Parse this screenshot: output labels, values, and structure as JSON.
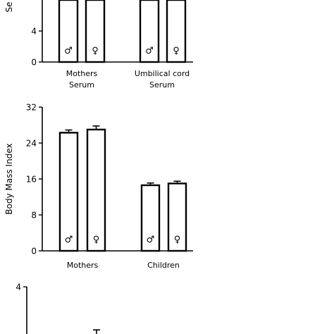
{
  "chart_data": [
    {
      "type": "bar",
      "ylabel": "Se",
      "ylim": [
        0,
        10
      ],
      "yticks": [
        0,
        4
      ],
      "groups": [
        {
          "label": [
            "Mothers",
            "Serum"
          ],
          "bars": [
            {
              "sex": "male",
              "symbol": "♂",
              "value": 10
            },
            {
              "sex": "female",
              "symbol": "♀",
              "value": 10
            }
          ]
        },
        {
          "label": [
            "Umbilical cord",
            "Serum"
          ],
          "bars": [
            {
              "sex": "male",
              "symbol": "♂",
              "value": 8.3
            },
            {
              "sex": "female",
              "symbol": "♀",
              "value": 10
            }
          ]
        }
      ]
    },
    {
      "type": "bar",
      "ylabel": "Body Mass Index",
      "ylim": [
        0,
        32
      ],
      "yticks": [
        0,
        8,
        16,
        24,
        32
      ],
      "groups": [
        {
          "label": [
            "Mothers"
          ],
          "bars": [
            {
              "sex": "male",
              "symbol": "♂",
              "value": 26.3,
              "error": 0.6
            },
            {
              "sex": "female",
              "symbol": "♀",
              "value": 27.0,
              "error": 0.8
            }
          ]
        },
        {
          "label": [
            "Children"
          ],
          "bars": [
            {
              "sex": "male",
              "symbol": "♂",
              "value": 14.6,
              "error": 0.5
            },
            {
              "sex": "female",
              "symbol": "♀",
              "value": 15.0,
              "error": 0.5
            }
          ]
        }
      ]
    },
    {
      "type": "bar",
      "ylabel": "",
      "ylim": [
        0,
        4
      ],
      "yticks": [
        4
      ],
      "groups": [
        {
          "label": [
            ""
          ],
          "bars": [
            {
              "sex": "male",
              "symbol": "",
              "value": null
            },
            {
              "sex": "female",
              "symbol": "",
              "value": 2.8,
              "error": 0.15
            }
          ]
        }
      ]
    }
  ]
}
